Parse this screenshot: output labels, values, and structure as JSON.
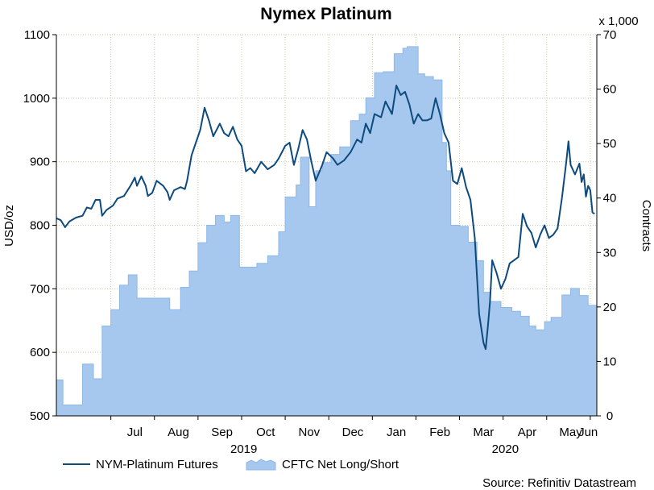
{
  "chart_data": {
    "type": "line+area",
    "title": "Nymex Platinum",
    "source": "Source: Refinitiv Datastream",
    "left_axis": {
      "label": "USD/oz",
      "range": [
        500,
        1100
      ],
      "ticks": [
        500,
        600,
        700,
        800,
        900,
        1000,
        1100
      ]
    },
    "right_axis": {
      "label": "Contracts",
      "unit_label": "x 1,000",
      "range": [
        0,
        70
      ],
      "ticks": [
        0,
        10,
        20,
        30,
        40,
        50,
        60,
        70
      ]
    },
    "x_axis": {
      "range_months": [
        0,
        12.4
      ],
      "month_labels": [
        {
          "label": "Jul",
          "pos": 1.8
        },
        {
          "label": "Aug",
          "pos": 2.8
        },
        {
          "label": "Sep",
          "pos": 3.8
        },
        {
          "label": "Oct",
          "pos": 4.8
        },
        {
          "label": "Nov",
          "pos": 5.8
        },
        {
          "label": "Dec",
          "pos": 6.8
        },
        {
          "label": "Jan",
          "pos": 7.8
        },
        {
          "label": "Feb",
          "pos": 8.8
        },
        {
          "label": "Mar",
          "pos": 9.8
        },
        {
          "label": "Apr",
          "pos": 10.8
        },
        {
          "label": "May",
          "pos": 11.8
        },
        {
          "label": "Jun",
          "pos": 12.2
        }
      ],
      "year_labels": [
        {
          "label": "2019",
          "pos": 4.3
        },
        {
          "label": "2020",
          "pos": 10.3
        }
      ],
      "gridlines": [
        1.25,
        2.25,
        3.25,
        4.25,
        5.25,
        6.25,
        7.25,
        8.25,
        9.25,
        10.25,
        11.25,
        12.25
      ]
    },
    "series": [
      {
        "name": "NYM-Platinum Futures",
        "axis": "left",
        "color": "#0d4a7e",
        "points": [
          [
            0.0,
            811
          ],
          [
            0.1,
            808
          ],
          [
            0.2,
            797
          ],
          [
            0.3,
            806
          ],
          [
            0.45,
            812
          ],
          [
            0.6,
            815
          ],
          [
            0.7,
            828
          ],
          [
            0.8,
            826
          ],
          [
            0.9,
            840
          ],
          [
            1.0,
            840
          ],
          [
            1.05,
            815
          ],
          [
            1.15,
            824
          ],
          [
            1.3,
            831
          ],
          [
            1.4,
            842
          ],
          [
            1.55,
            846
          ],
          [
            1.7,
            862
          ],
          [
            1.8,
            875
          ],
          [
            1.85,
            862
          ],
          [
            1.95,
            877
          ],
          [
            2.05,
            862
          ],
          [
            2.1,
            846
          ],
          [
            2.2,
            851
          ],
          [
            2.3,
            870
          ],
          [
            2.45,
            862
          ],
          [
            2.55,
            852
          ],
          [
            2.6,
            840
          ],
          [
            2.7,
            855
          ],
          [
            2.85,
            860
          ],
          [
            2.95,
            857
          ],
          [
            3.0,
            870
          ],
          [
            3.1,
            910
          ],
          [
            3.2,
            930
          ],
          [
            3.3,
            950
          ],
          [
            3.4,
            985
          ],
          [
            3.5,
            965
          ],
          [
            3.6,
            940
          ],
          [
            3.75,
            960
          ],
          [
            3.85,
            945
          ],
          [
            3.95,
            940
          ],
          [
            4.05,
            955
          ],
          [
            4.15,
            935
          ],
          [
            4.25,
            925
          ],
          [
            4.35,
            885
          ],
          [
            4.45,
            890
          ],
          [
            4.55,
            882
          ],
          [
            4.7,
            900
          ],
          [
            4.85,
            888
          ],
          [
            5.0,
            895
          ],
          [
            5.1,
            905
          ],
          [
            5.25,
            925
          ],
          [
            5.35,
            930
          ],
          [
            5.45,
            895
          ],
          [
            5.55,
            920
          ],
          [
            5.65,
            950
          ],
          [
            5.75,
            935
          ],
          [
            5.85,
            900
          ],
          [
            5.95,
            870
          ],
          [
            6.1,
            895
          ],
          [
            6.2,
            915
          ],
          [
            6.35,
            905
          ],
          [
            6.45,
            895
          ],
          [
            6.6,
            902
          ],
          [
            6.75,
            915
          ],
          [
            6.9,
            935
          ],
          [
            7.0,
            930
          ],
          [
            7.1,
            960
          ],
          [
            7.2,
            945
          ],
          [
            7.3,
            975
          ],
          [
            7.45,
            970
          ],
          [
            7.55,
            995
          ],
          [
            7.7,
            975
          ],
          [
            7.8,
            1020
          ],
          [
            7.9,
            1005
          ],
          [
            8.0,
            1010
          ],
          [
            8.1,
            990
          ],
          [
            8.2,
            960
          ],
          [
            8.3,
            975
          ],
          [
            8.4,
            965
          ],
          [
            8.5,
            965
          ],
          [
            8.6,
            968
          ],
          [
            8.7,
            1000
          ],
          [
            8.8,
            975
          ],
          [
            8.9,
            945
          ],
          [
            9.0,
            930
          ],
          [
            9.1,
            870
          ],
          [
            9.2,
            865
          ],
          [
            9.3,
            890
          ],
          [
            9.4,
            860
          ],
          [
            9.5,
            840
          ],
          [
            9.6,
            780
          ],
          [
            9.7,
            660
          ],
          [
            9.8,
            615
          ],
          [
            9.85,
            605
          ],
          [
            9.9,
            640
          ],
          [
            9.95,
            680
          ],
          [
            10.0,
            745
          ],
          [
            10.1,
            725
          ],
          [
            10.2,
            700
          ],
          [
            10.3,
            715
          ],
          [
            10.4,
            740
          ],
          [
            10.5,
            745
          ],
          [
            10.6,
            750
          ],
          [
            10.7,
            818
          ],
          [
            10.8,
            798
          ],
          [
            10.9,
            788
          ],
          [
            11.0,
            765
          ],
          [
            11.1,
            785
          ],
          [
            11.2,
            800
          ],
          [
            11.3,
            780
          ],
          [
            11.4,
            785
          ],
          [
            11.5,
            795
          ],
          [
            11.6,
            843
          ],
          [
            11.7,
            900
          ],
          [
            11.75,
            932
          ],
          [
            11.8,
            895
          ],
          [
            11.9,
            880
          ],
          [
            12.0,
            897
          ],
          [
            12.05,
            868
          ],
          [
            12.1,
            880
          ],
          [
            12.15,
            845
          ],
          [
            12.2,
            862
          ],
          [
            12.25,
            855
          ],
          [
            12.3,
            820
          ],
          [
            12.35,
            818
          ]
        ]
      },
      {
        "name": "CFTC Net Long/Short",
        "axis": "right",
        "color": "#a7c8ee",
        "edge_color": "#8db7e6",
        "steps": [
          [
            0.0,
            6.6
          ],
          [
            0.15,
            2.0
          ],
          [
            0.6,
            9.5
          ],
          [
            0.85,
            6.8
          ],
          [
            1.05,
            16.5
          ],
          [
            1.25,
            19.5
          ],
          [
            1.45,
            24
          ],
          [
            1.65,
            25.9
          ],
          [
            1.85,
            21.6
          ],
          [
            2.25,
            21.6
          ],
          [
            2.6,
            19.5
          ],
          [
            2.85,
            23.6
          ],
          [
            3.05,
            26.6
          ],
          [
            3.25,
            31.8
          ],
          [
            3.45,
            35
          ],
          [
            3.65,
            36.8
          ],
          [
            3.85,
            35.6
          ],
          [
            4.0,
            36.8
          ],
          [
            4.2,
            27.3
          ],
          [
            4.6,
            28
          ],
          [
            4.85,
            29.4
          ],
          [
            5.1,
            33.8
          ],
          [
            5.25,
            40.2
          ],
          [
            5.5,
            42.4
          ],
          [
            5.6,
            47.5
          ],
          [
            5.8,
            38.4
          ],
          [
            5.95,
            45
          ],
          [
            6.1,
            46.5
          ],
          [
            6.3,
            48
          ],
          [
            6.5,
            49.4
          ],
          [
            6.75,
            54.2
          ],
          [
            6.95,
            55.4
          ],
          [
            7.1,
            58.4
          ],
          [
            7.3,
            63
          ],
          [
            7.5,
            63.2
          ],
          [
            7.75,
            66.5
          ],
          [
            7.95,
            67.5
          ],
          [
            8.05,
            67.8
          ],
          [
            8.3,
            62.8
          ],
          [
            8.45,
            62.3
          ],
          [
            8.65,
            61.7
          ],
          [
            8.85,
            50.2
          ],
          [
            8.95,
            45
          ],
          [
            9.05,
            35
          ],
          [
            9.25,
            34.8
          ],
          [
            9.45,
            31.9
          ],
          [
            9.65,
            28.5
          ],
          [
            9.8,
            22.7
          ],
          [
            9.95,
            21
          ],
          [
            10.2,
            19.9
          ],
          [
            10.45,
            19.2
          ],
          [
            10.65,
            18.3
          ],
          [
            10.85,
            16.5
          ],
          [
            11.0,
            15.8
          ],
          [
            11.2,
            17.3
          ],
          [
            11.35,
            18.1
          ],
          [
            11.6,
            22.2
          ],
          [
            11.8,
            23.4
          ],
          [
            12.0,
            22.1
          ],
          [
            12.2,
            20.3
          ],
          [
            12.4,
            20.3
          ]
        ]
      }
    ],
    "legend": [
      {
        "label": "NYM-Platinum Futures"
      },
      {
        "label": "CFTC Net Long/Short"
      }
    ]
  }
}
